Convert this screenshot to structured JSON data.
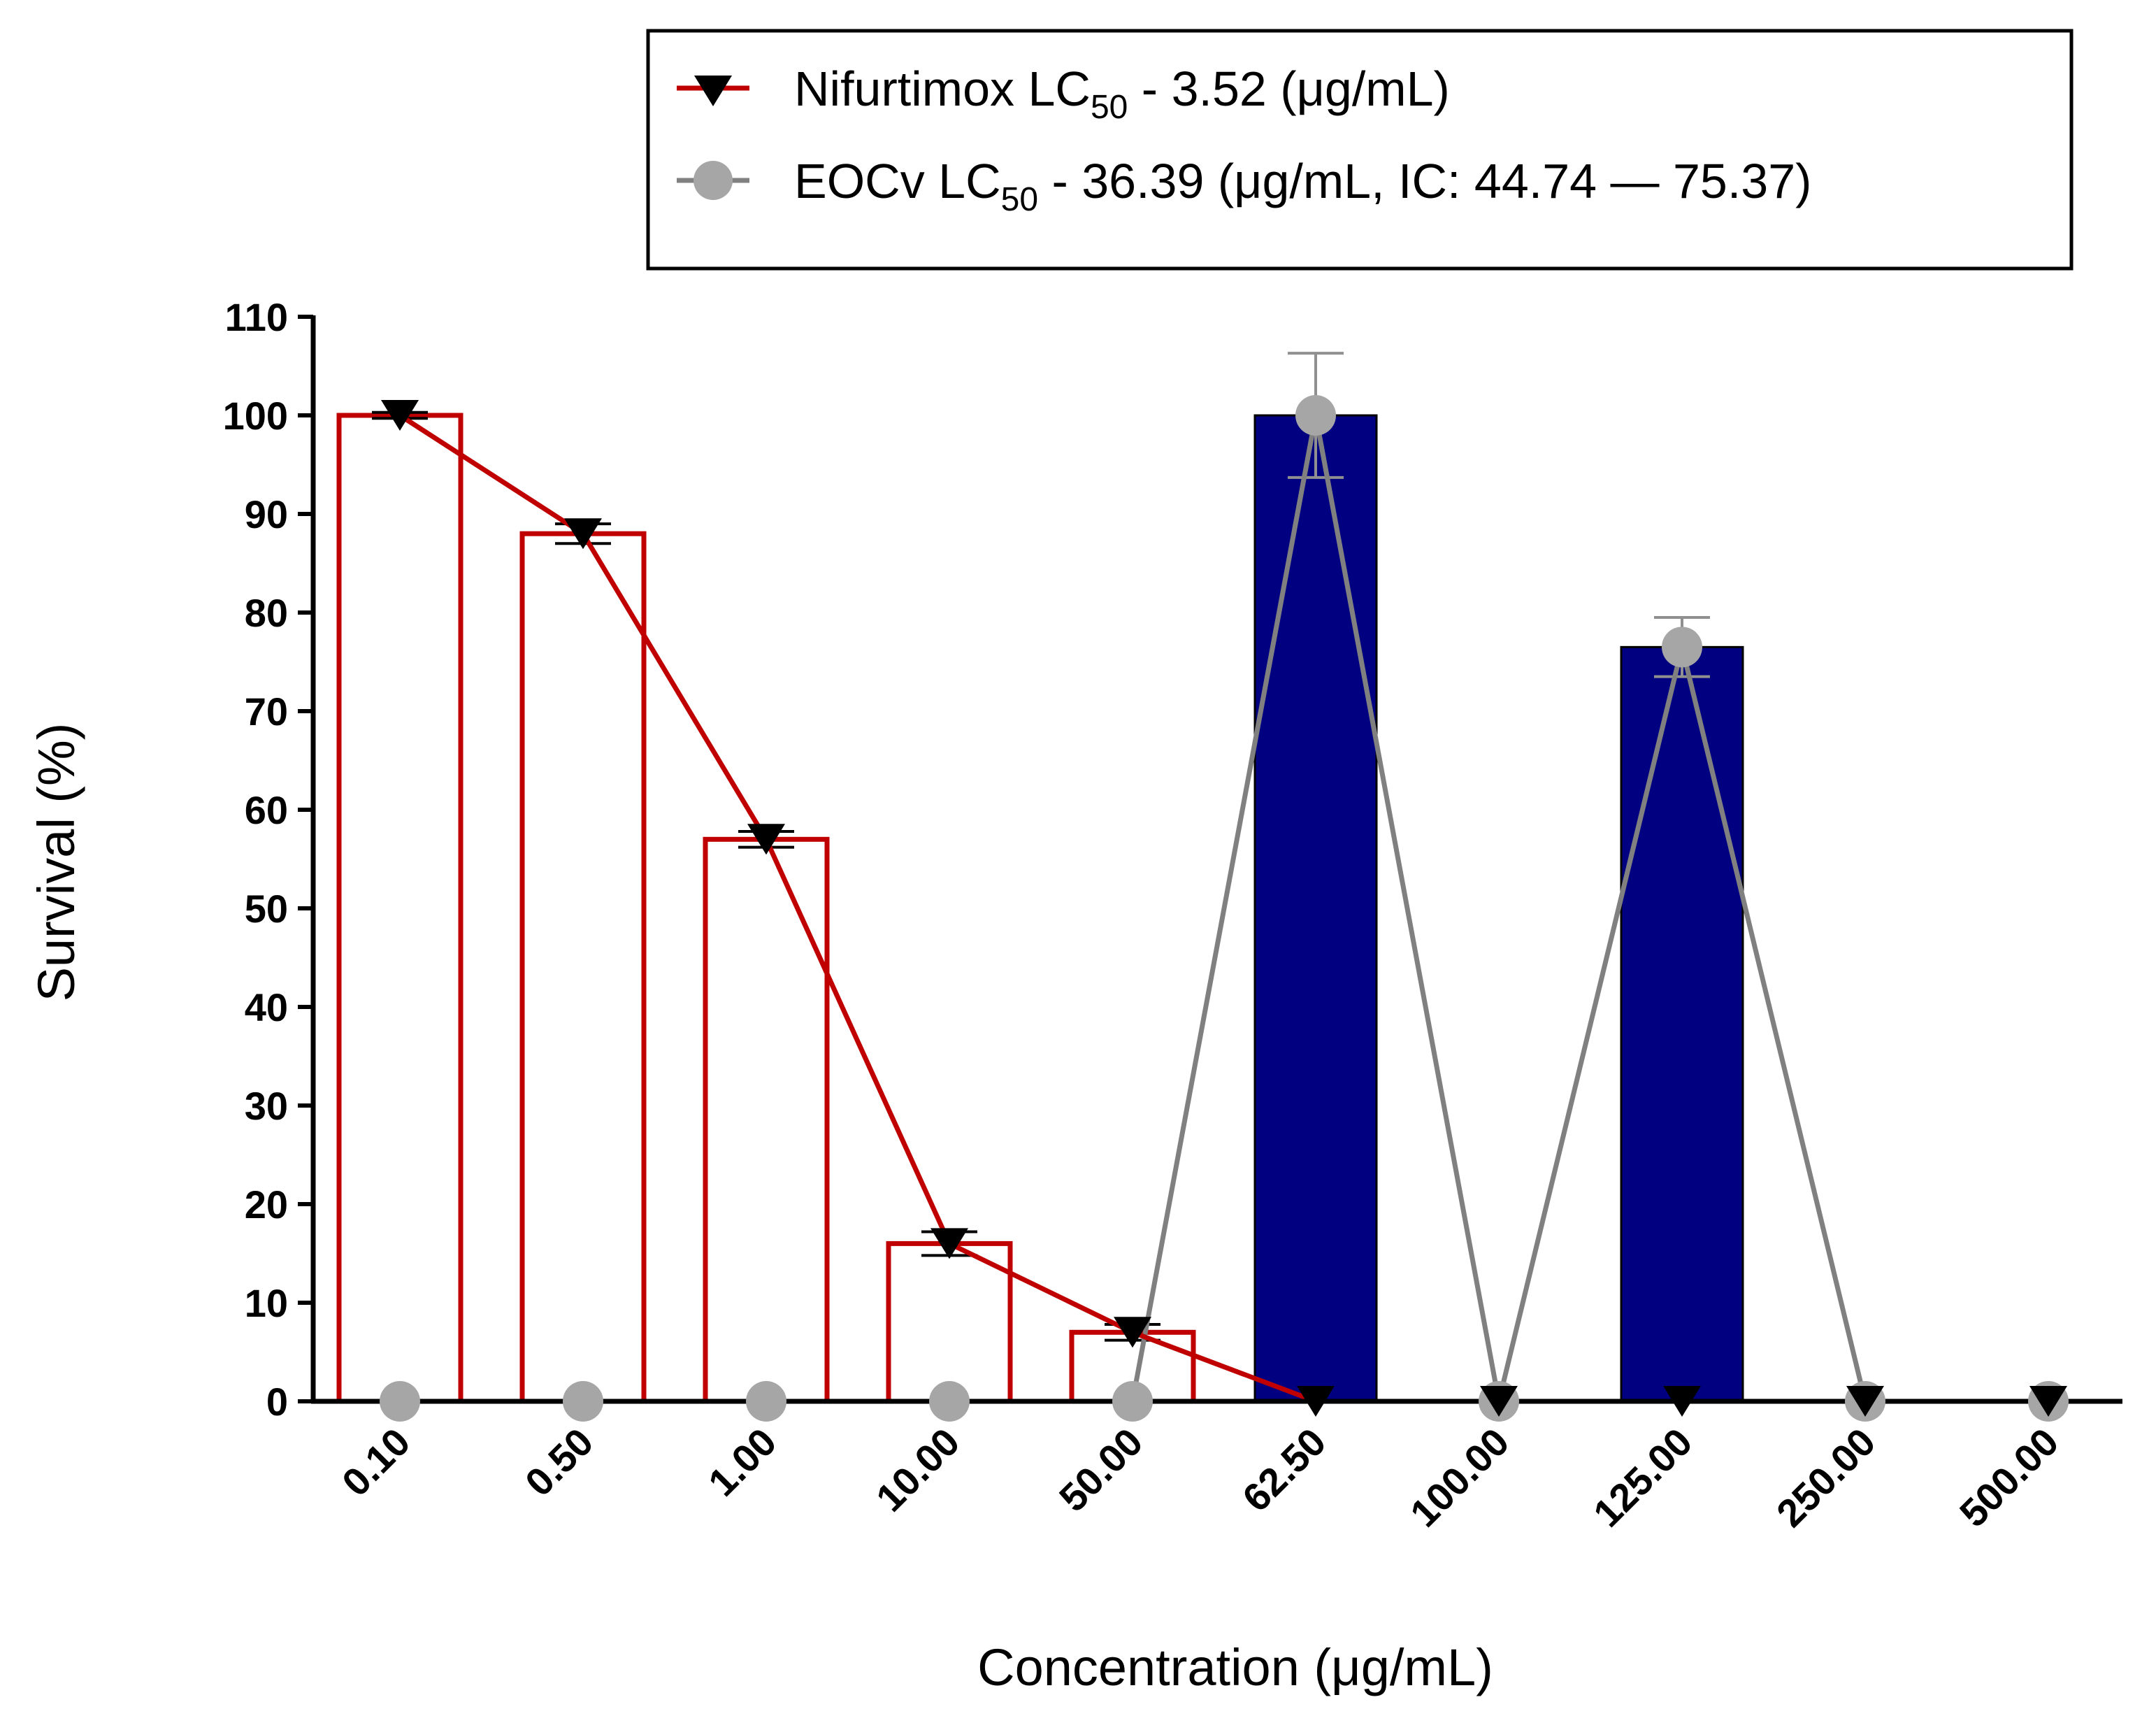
{
  "chart_data": {
    "type": "bar",
    "categories": [
      "0.10",
      "0.50",
      "1.00",
      "10.00",
      "50.00",
      "62.50",
      "100.00",
      "125.00",
      "250.00",
      "500.00"
    ],
    "xlabel": "Concentration (μg/mL)",
    "ylabel": "Survival (%)",
    "ylim": [
      0,
      110
    ],
    "yticks": [
      "0",
      "10",
      "20",
      "30",
      "40",
      "50",
      "60",
      "70",
      "80",
      "90",
      "100",
      "110"
    ],
    "grid": false,
    "legend_position": "top-right",
    "series": [
      {
        "name": "Nifurtimox",
        "legend_prefix": "Nifurtimox LC",
        "legend_sub": "50",
        "legend_suffix": " - 3.52 (μg/mL)",
        "bar_style": "outline",
        "bar_color": "#c00000",
        "line_color": "#c00000",
        "marker": "triangle-down",
        "marker_color": "#000000",
        "values": [
          100,
          88,
          57,
          16,
          7,
          0,
          0,
          0,
          0,
          0
        ],
        "errors": [
          0.3,
          1.0,
          0.8,
          1.2,
          0.8,
          0,
          0,
          0,
          0,
          0
        ]
      },
      {
        "name": "EOCv",
        "legend_prefix": "EOCv LC",
        "legend_sub": "50",
        "legend_suffix": " - 36.39 (μg/mL, IC: 44.74  — 75.37)",
        "bar_style": "filled",
        "bar_color": "#000080",
        "line_color": "#808080",
        "marker": "circle",
        "marker_color": "#a6a6a6",
        "values": [
          0,
          0,
          0,
          0,
          0,
          100,
          0,
          76.5,
          0,
          0
        ],
        "errors": [
          0,
          0,
          0,
          0,
          0,
          6.3,
          0,
          3.0,
          0,
          0
        ]
      }
    ]
  }
}
